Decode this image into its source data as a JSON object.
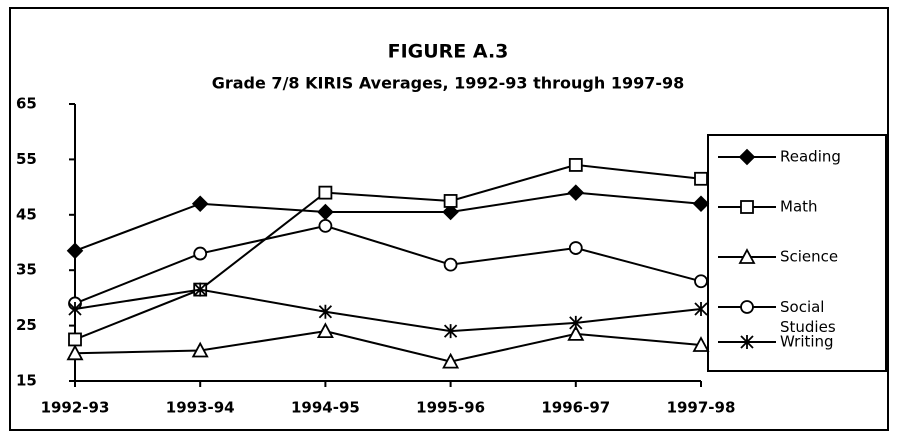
{
  "chart_data": {
    "type": "line",
    "title": "FIGURE A.3",
    "subtitle": "Grade 7/8 KIRIS Averages, 1992-93 through 1997-98",
    "categories": [
      "1992-93",
      "1993-94",
      "1994-95",
      "1995-96",
      "1996-97",
      "1997-98"
    ],
    "series": [
      {
        "name": "Reading",
        "color": "#000000",
        "marker": "diamond",
        "values": [
          38.5,
          47,
          45.5,
          45.5,
          49,
          47
        ]
      },
      {
        "name": "Math",
        "color": "#000000",
        "marker": "square",
        "values": [
          22.5,
          31.5,
          49,
          47.5,
          54,
          51.5
        ]
      },
      {
        "name": "Science",
        "color": "#000000",
        "marker": "triangle",
        "values": [
          20,
          20.5,
          24,
          18.5,
          23.5,
          21.5
        ]
      },
      {
        "name": "Social Studies",
        "color": "#000000",
        "marker": "circle",
        "values": [
          29,
          38,
          43,
          36,
          39,
          33
        ]
      },
      {
        "name": "Writing",
        "color": "#000000",
        "marker": "asterisk",
        "values": [
          28,
          31.5,
          27.5,
          24,
          25.5,
          28
        ]
      }
    ],
    "ylim": [
      15,
      65
    ],
    "yticks": [
      15,
      25,
      35,
      45,
      55,
      65
    ],
    "grid": false,
    "legend": "right"
  }
}
